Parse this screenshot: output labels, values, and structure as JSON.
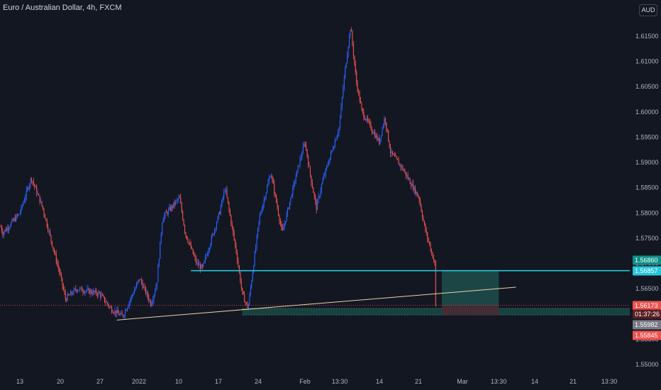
{
  "header": {
    "title": "Euro / Australian Dollar, 4h, FXCM",
    "currency": "AUD"
  },
  "colors": {
    "background": "#131722",
    "up": "#2962ff",
    "down": "#ef5350",
    "horizontal_line": "#26c6da",
    "trend_line": "#e7d3a6",
    "target_zone": "#1e4b4a",
    "stop_zone": "#4a2b33",
    "support_zone": "#1a4a45"
  },
  "chart_data": {
    "type": "candlestick",
    "title": "Euro / Australian Dollar, 4h, FXCM",
    "symbol": "EURAUD",
    "interval": "4h",
    "source": "FXCM",
    "x_tick_labels": [
      "13",
      "20",
      "27",
      "2022",
      "10",
      "17",
      "24",
      "Feb",
      "13:30",
      "14",
      "21",
      "Mar",
      "13:30",
      "14",
      "21",
      "13:30"
    ],
    "y_tick_labels": [
      "1.61500",
      "1.61000",
      "1.60500",
      "1.60000",
      "1.59500",
      "1.59000",
      "1.58500",
      "1.58000",
      "1.57500",
      "1.57000",
      "1.56500",
      "1.56000",
      "1.55500",
      "1.55000"
    ],
    "ylim": [
      1.5485,
      1.6195
    ],
    "price_path": [
      [
        "2021-12-06",
        1.579
      ],
      [
        "2021-12-08",
        1.583
      ],
      [
        "2021-12-10",
        1.576
      ],
      [
        "2021-12-13",
        1.58
      ],
      [
        "2021-12-15",
        1.587
      ],
      [
        "2021-12-17",
        1.581
      ],
      [
        "2021-12-20",
        1.568
      ],
      [
        "2021-12-21",
        1.563
      ],
      [
        "2021-12-23",
        1.565
      ],
      [
        "2021-12-27",
        1.564
      ],
      [
        "2021-12-29",
        1.561
      ],
      [
        "2021-12-31",
        1.5595
      ],
      [
        "2022-01-03",
        1.567
      ],
      [
        "2022-01-05",
        1.562
      ],
      [
        "2022-01-06",
        1.566
      ],
      [
        "2022-01-07",
        1.579
      ],
      [
        "2022-01-10",
        1.583
      ],
      [
        "2022-01-11",
        1.576
      ],
      [
        "2022-01-13",
        1.57
      ],
      [
        "2022-01-14",
        1.569
      ],
      [
        "2022-01-17",
        1.58
      ],
      [
        "2022-01-18",
        1.585
      ],
      [
        "2022-01-20",
        1.572
      ],
      [
        "2022-01-21",
        1.564
      ],
      [
        "2022-01-22",
        1.561
      ],
      [
        "2022-01-24",
        1.579
      ],
      [
        "2022-01-26",
        1.588
      ],
      [
        "2022-01-28",
        1.576
      ],
      [
        "2022-01-31",
        1.59
      ],
      [
        "2022-02-01",
        1.594
      ],
      [
        "2022-02-02",
        1.587
      ],
      [
        "2022-02-03",
        1.581
      ],
      [
        "2022-02-04",
        1.586
      ],
      [
        "2022-02-07",
        1.597
      ],
      [
        "2022-02-08",
        1.608
      ],
      [
        "2022-02-09",
        1.617
      ],
      [
        "2022-02-10",
        1.606
      ],
      [
        "2022-02-11",
        1.6
      ],
      [
        "2022-02-14",
        1.594
      ],
      [
        "2022-02-15",
        1.599
      ],
      [
        "2022-02-16",
        1.592
      ],
      [
        "2022-02-18",
        1.589
      ],
      [
        "2022-02-21",
        1.583
      ],
      [
        "2022-02-22",
        1.577
      ],
      [
        "2022-02-23",
        1.573
      ],
      [
        "2022-02-24",
        1.569
      ],
      [
        "2022-02-24",
        1.5617
      ]
    ],
    "annotations": {
      "horizontal_level": 1.56857,
      "trend_line": [
        [
          "2021-12-30",
          1.5588
        ],
        [
          "2022-03-10",
          1.5653
        ]
      ],
      "support_zone": [
        1.5598,
        1.5611
      ],
      "target_zone": [
        1.5617,
        1.56857
      ],
      "stop_zone": [
        1.5598,
        1.5617
      ]
    },
    "price_labels": [
      {
        "text": "1.56860",
        "kind": "level"
      },
      {
        "text": "1.56857",
        "kind": "level"
      },
      {
        "text": "1.56173",
        "kind": "last"
      },
      {
        "text": "01:37:26",
        "kind": "countdown"
      },
      {
        "text": "1.55982",
        "kind": "zone"
      },
      {
        "text": "1.55845",
        "kind": "stop"
      }
    ]
  }
}
